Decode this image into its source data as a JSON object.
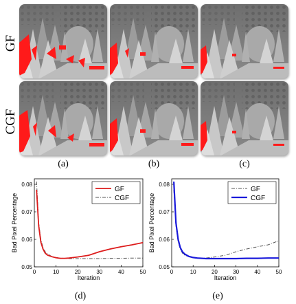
{
  "figure": {
    "row_labels": [
      "GF",
      "CGF"
    ],
    "column_labels": [
      "(a)",
      "(b)",
      "(c)"
    ],
    "chart_labels": [
      "(d)",
      "(e)"
    ]
  },
  "colors": {
    "gf": "#dd1c1c",
    "cgf": "#555555",
    "cgf_blue": "#1a1adb",
    "bad_pixel": "#ff1a1a"
  },
  "chart_data": [
    {
      "type": "line",
      "xlabel": "Iteration",
      "ylabel": "Bad Pixel Percentage",
      "xlim": [
        0,
        50
      ],
      "ylim": [
        0.05,
        0.082
      ],
      "xticks": [
        0,
        10,
        20,
        30,
        40,
        50
      ],
      "yticks": [
        0.05,
        0.06,
        0.07,
        0.08
      ],
      "ytick_labels": [
        "0.05",
        "0.06",
        "0.07",
        "0.08"
      ],
      "legend_position": "top-right",
      "series": [
        {
          "name": "GF",
          "style": "solid-red",
          "x": [
            1,
            2,
            3,
            4,
            5,
            6,
            8,
            10,
            12,
            14,
            16,
            18,
            20,
            25,
            30,
            35,
            40,
            45,
            50
          ],
          "y": [
            0.078,
            0.065,
            0.059,
            0.0565,
            0.055,
            0.0543,
            0.0537,
            0.0533,
            0.0531,
            0.0531,
            0.0532,
            0.0534,
            0.0536,
            0.0542,
            0.0555,
            0.0565,
            0.0573,
            0.058,
            0.0588
          ]
        },
        {
          "name": "CGF",
          "style": "dashdot-gray",
          "x": [
            1,
            2,
            3,
            4,
            5,
            6,
            8,
            10,
            12,
            14,
            16,
            18,
            20,
            25,
            30,
            35,
            40,
            45,
            50
          ],
          "y": [
            0.081,
            0.066,
            0.06,
            0.057,
            0.0555,
            0.0547,
            0.0538,
            0.0534,
            0.0532,
            0.0531,
            0.053,
            0.053,
            0.053,
            0.053,
            0.053,
            0.0531,
            0.0531,
            0.0532,
            0.0532
          ]
        }
      ]
    },
    {
      "type": "line",
      "xlabel": "Iteration",
      "ylabel": "Bad Pixel Percentage",
      "xlim": [
        0,
        50
      ],
      "ylim": [
        0.05,
        0.082
      ],
      "xticks": [
        0,
        10,
        20,
        30,
        40,
        50
      ],
      "yticks": [
        0.05,
        0.06,
        0.07,
        0.08
      ],
      "ytick_labels": [
        "0.05",
        "0.06",
        "0.07",
        "0.08"
      ],
      "legend_position": "top-right",
      "series": [
        {
          "name": "GF",
          "style": "dashdot-gray",
          "x": [
            1,
            2,
            3,
            4,
            5,
            6,
            8,
            10,
            12,
            14,
            16,
            18,
            20,
            25,
            30,
            35,
            40,
            45,
            50
          ],
          "y": [
            0.078,
            0.065,
            0.059,
            0.0565,
            0.055,
            0.0543,
            0.0537,
            0.0533,
            0.0531,
            0.0531,
            0.0532,
            0.0534,
            0.0536,
            0.0542,
            0.0555,
            0.0565,
            0.0573,
            0.058,
            0.0595
          ]
        },
        {
          "name": "CGF",
          "style": "solid-blue",
          "x": [
            1,
            2,
            3,
            4,
            5,
            6,
            8,
            10,
            12,
            14,
            16,
            18,
            20,
            25,
            30,
            35,
            40,
            45,
            50
          ],
          "y": [
            0.081,
            0.066,
            0.06,
            0.057,
            0.0555,
            0.0547,
            0.0538,
            0.0534,
            0.0532,
            0.0531,
            0.053,
            0.053,
            0.053,
            0.053,
            0.053,
            0.0531,
            0.0531,
            0.0532,
            0.0532
          ]
        }
      ]
    }
  ]
}
